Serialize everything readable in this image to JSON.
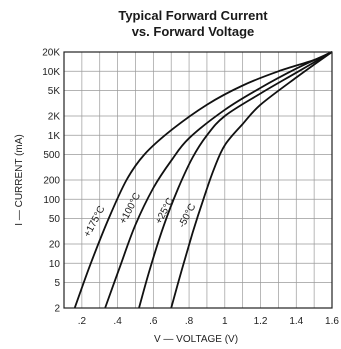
{
  "chart_data": {
    "type": "line",
    "title": "Typical Forward Current",
    "subtitle": "vs. Forward Voltage",
    "xlabel": "V   — VOLTAGE (V)",
    "ylabel": "I   — CURRENT (mA)",
    "xlim": [
      0.1,
      1.6
    ],
    "ylim": [
      2,
      20000
    ],
    "yscale": "log",
    "grid": true,
    "x_ticks": [
      {
        "value": 0.2,
        "label": ".2"
      },
      {
        "value": 0.4,
        "label": ".4"
      },
      {
        "value": 0.6,
        "label": ".6"
      },
      {
        "value": 0.8,
        "label": ".8"
      },
      {
        "value": 1.0,
        "label": "1"
      },
      {
        "value": 1.2,
        "label": "1.2"
      },
      {
        "value": 1.4,
        "label": "1.4"
      },
      {
        "value": 1.6,
        "label": "1.6"
      }
    ],
    "y_ticks": [
      {
        "value": 2,
        "label": "2"
      },
      {
        "value": 5,
        "label": "5"
      },
      {
        "value": 10,
        "label": "10"
      },
      {
        "value": 20,
        "label": "20"
      },
      {
        "value": 50,
        "label": "50"
      },
      {
        "value": 100,
        "label": "100"
      },
      {
        "value": 200,
        "label": "200"
      },
      {
        "value": 500,
        "label": "500"
      },
      {
        "value": 1000,
        "label": "1K"
      },
      {
        "value": 2000,
        "label": "2K"
      },
      {
        "value": 5000,
        "label": "5K"
      },
      {
        "value": 10000,
        "label": "10K"
      },
      {
        "value": 20000,
        "label": "20K"
      }
    ],
    "series": [
      {
        "name": "+175°C",
        "label_at": {
          "x": 0.24,
          "y": 25
        },
        "x": [
          0.16,
          0.25,
          0.35,
          0.45,
          0.55,
          0.7,
          0.9,
          1.1,
          1.3,
          1.5,
          1.6
        ],
        "y": [
          2,
          10,
          50,
          200,
          500,
          1200,
          3000,
          6000,
          10000,
          15000,
          20000
        ]
      },
      {
        "name": "+100°C",
        "label_at": {
          "x": 0.44,
          "y": 40
        },
        "x": [
          0.33,
          0.42,
          0.5,
          0.6,
          0.7,
          0.8,
          1.0,
          1.2,
          1.4,
          1.6
        ],
        "y": [
          2,
          10,
          40,
          150,
          400,
          900,
          2500,
          5500,
          11000,
          20000
        ]
      },
      {
        "name": "+25°C",
        "label_at": {
          "x": 0.64,
          "y": 40
        },
        "x": [
          0.52,
          0.58,
          0.66,
          0.74,
          0.82,
          0.9,
          1.0,
          1.2,
          1.4,
          1.6
        ],
        "y": [
          2,
          8,
          40,
          150,
          450,
          1000,
          2000,
          4500,
          9500,
          20000
        ]
      },
      {
        "name": "-50°C",
        "label_at": {
          "x": 0.77,
          "y": 35
        },
        "x": [
          0.7,
          0.76,
          0.82,
          0.88,
          0.94,
          1.0,
          1.1,
          1.2,
          1.4,
          1.6
        ],
        "y": [
          2,
          8,
          30,
          100,
          300,
          700,
          1500,
          3000,
          8000,
          20000
        ]
      }
    ]
  }
}
